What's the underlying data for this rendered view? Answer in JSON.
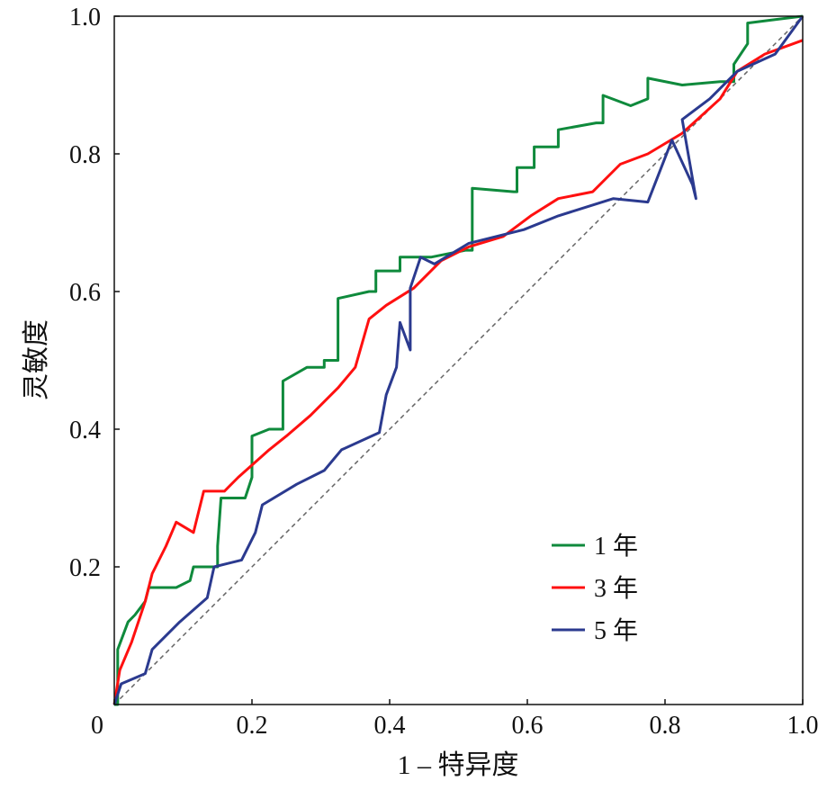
{
  "chart_data": {
    "type": "line",
    "title": "",
    "xlabel": "1 – 特异度",
    "ylabel": "灵敏度",
    "xlim": [
      0,
      1
    ],
    "ylim": [
      0,
      1
    ],
    "x_ticks": [
      "0",
      "0.2",
      "0.4",
      "0.6",
      "0.8",
      "1.0"
    ],
    "x_tick_values": [
      0,
      0.2,
      0.4,
      0.6,
      0.8,
      1.0
    ],
    "y_ticks": [
      "0.2",
      "0.4",
      "0.6",
      "0.8",
      "1.0"
    ],
    "y_tick_values": [
      0.2,
      0.4,
      0.6,
      0.8,
      1.0
    ],
    "grid": false,
    "legend_position": "bottom-right",
    "reference_line": {
      "x": [
        0,
        1
      ],
      "y": [
        0,
        1
      ],
      "style": "dashed",
      "color": "#666666"
    },
    "series": [
      {
        "name": "1 年",
        "color": "#0f8a3c",
        "x": [
          0,
          0.005,
          0.005,
          0.02,
          0.03,
          0.045,
          0.05,
          0.09,
          0.11,
          0.115,
          0.15,
          0.15,
          0.155,
          0.19,
          0.2,
          0.2,
          0.225,
          0.245,
          0.245,
          0.28,
          0.305,
          0.305,
          0.325,
          0.325,
          0.37,
          0.38,
          0.38,
          0.415,
          0.415,
          0.46,
          0.51,
          0.52,
          0.52,
          0.58,
          0.585,
          0.585,
          0.61,
          0.61,
          0.645,
          0.645,
          0.7,
          0.71,
          0.71,
          0.75,
          0.775,
          0.775,
          0.825,
          0.88,
          0.9,
          0.9,
          0.92,
          0.92,
          0.96,
          1.0
        ],
        "y": [
          0,
          0,
          0.08,
          0.12,
          0.13,
          0.15,
          0.17,
          0.17,
          0.18,
          0.2,
          0.2,
          0.23,
          0.3,
          0.3,
          0.33,
          0.39,
          0.4,
          0.4,
          0.47,
          0.49,
          0.49,
          0.5,
          0.5,
          0.59,
          0.6,
          0.6,
          0.63,
          0.63,
          0.65,
          0.65,
          0.66,
          0.66,
          0.75,
          0.745,
          0.745,
          0.78,
          0.78,
          0.81,
          0.81,
          0.835,
          0.845,
          0.845,
          0.885,
          0.87,
          0.88,
          0.91,
          0.9,
          0.905,
          0.905,
          0.93,
          0.96,
          0.99,
          0.995,
          1.0
        ]
      },
      {
        "name": "3 年",
        "color": "#ff1010",
        "x": [
          0,
          0.008,
          0.025,
          0.045,
          0.055,
          0.075,
          0.09,
          0.115,
          0.13,
          0.16,
          0.18,
          0.225,
          0.25,
          0.285,
          0.325,
          0.35,
          0.37,
          0.395,
          0.435,
          0.475,
          0.515,
          0.565,
          0.605,
          0.645,
          0.695,
          0.735,
          0.775,
          0.825,
          0.88,
          0.905,
          0.945,
          1.0
        ],
        "y": [
          0,
          0.05,
          0.09,
          0.15,
          0.19,
          0.23,
          0.265,
          0.25,
          0.31,
          0.31,
          0.33,
          0.37,
          0.39,
          0.42,
          0.46,
          0.49,
          0.56,
          0.58,
          0.605,
          0.645,
          0.665,
          0.68,
          0.71,
          0.735,
          0.745,
          0.785,
          0.8,
          0.83,
          0.88,
          0.92,
          0.945,
          0.965
        ]
      },
      {
        "name": "5 年",
        "color": "#2b3a8f",
        "x": [
          0,
          0.01,
          0.045,
          0.055,
          0.095,
          0.135,
          0.145,
          0.185,
          0.205,
          0.215,
          0.265,
          0.305,
          0.33,
          0.385,
          0.395,
          0.41,
          0.415,
          0.43,
          0.43,
          0.445,
          0.465,
          0.515,
          0.595,
          0.645,
          0.725,
          0.775,
          0.81,
          0.84,
          0.845,
          0.825,
          0.865,
          0.905,
          0.96,
          1.0
        ],
        "y": [
          0,
          0.03,
          0.045,
          0.08,
          0.12,
          0.155,
          0.2,
          0.21,
          0.25,
          0.29,
          0.32,
          0.34,
          0.37,
          0.395,
          0.45,
          0.49,
          0.555,
          0.515,
          0.605,
          0.65,
          0.64,
          0.67,
          0.69,
          0.71,
          0.735,
          0.73,
          0.82,
          0.755,
          0.735,
          0.85,
          0.88,
          0.92,
          0.945,
          1.0
        ]
      }
    ]
  }
}
